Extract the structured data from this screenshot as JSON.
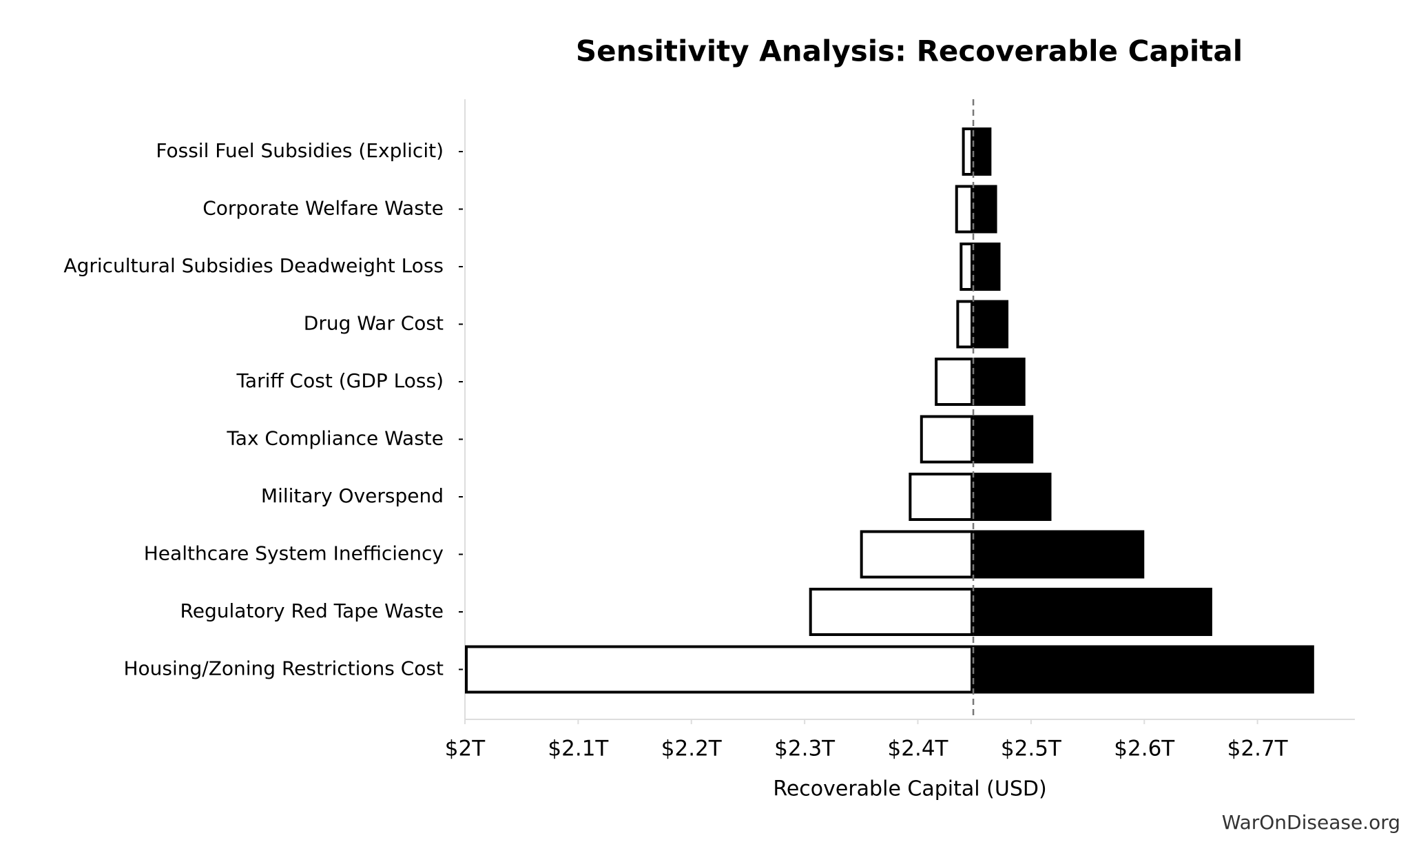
{
  "chart_data": {
    "type": "tornado",
    "title": "Sensitivity Analysis: Recoverable Capital",
    "x_label": "Recoverable Capital (USD)",
    "source": "WarOnDisease.org",
    "categories": [
      "Fossil Fuel Subsidies (Explicit)",
      "Corporate Welfare Waste",
      "Agricultural Subsidies Deadweight Loss",
      "Drug War Cost",
      "Tariff Cost (GDP Loss)",
      "Tax Compliance Waste",
      "Military Overspend",
      "Healthcare System Inefficiency",
      "Regulatory Red Tape Waste",
      "Housing/Zoning Restrictions Cost"
    ],
    "baseline": 2449000000000,
    "low_values": [
      2439000000000,
      2433000000000,
      2437000000000,
      2434000000000,
      2415000000000,
      2402000000000,
      2392000000000,
      2349000000000,
      2304000000000,
      2000000000000
    ],
    "high_values": [
      2465000000000,
      2470000000000,
      2473000000000,
      2480000000000,
      2495000000000,
      2502000000000,
      2518000000000,
      2600000000000,
      2660000000000,
      2750000000000
    ],
    "low_color": "#ffffff",
    "high_color": "#000000",
    "xlim": [
      2000000000000,
      2786000000000
    ],
    "xticks": [
      {
        "value": 2000000000000,
        "label": "$2T"
      },
      {
        "value": 2100000000000,
        "label": "$2.1T"
      },
      {
        "value": 2200000000000,
        "label": "$2.2T"
      },
      {
        "value": 2300000000000,
        "label": "$2.3T"
      },
      {
        "value": 2400000000000,
        "label": "$2.4T"
      },
      {
        "value": 2500000000000,
        "label": "$2.5T"
      },
      {
        "value": 2600000000000,
        "label": "$2.6T"
      },
      {
        "value": 2700000000000,
        "label": "$2.7T"
      }
    ]
  }
}
